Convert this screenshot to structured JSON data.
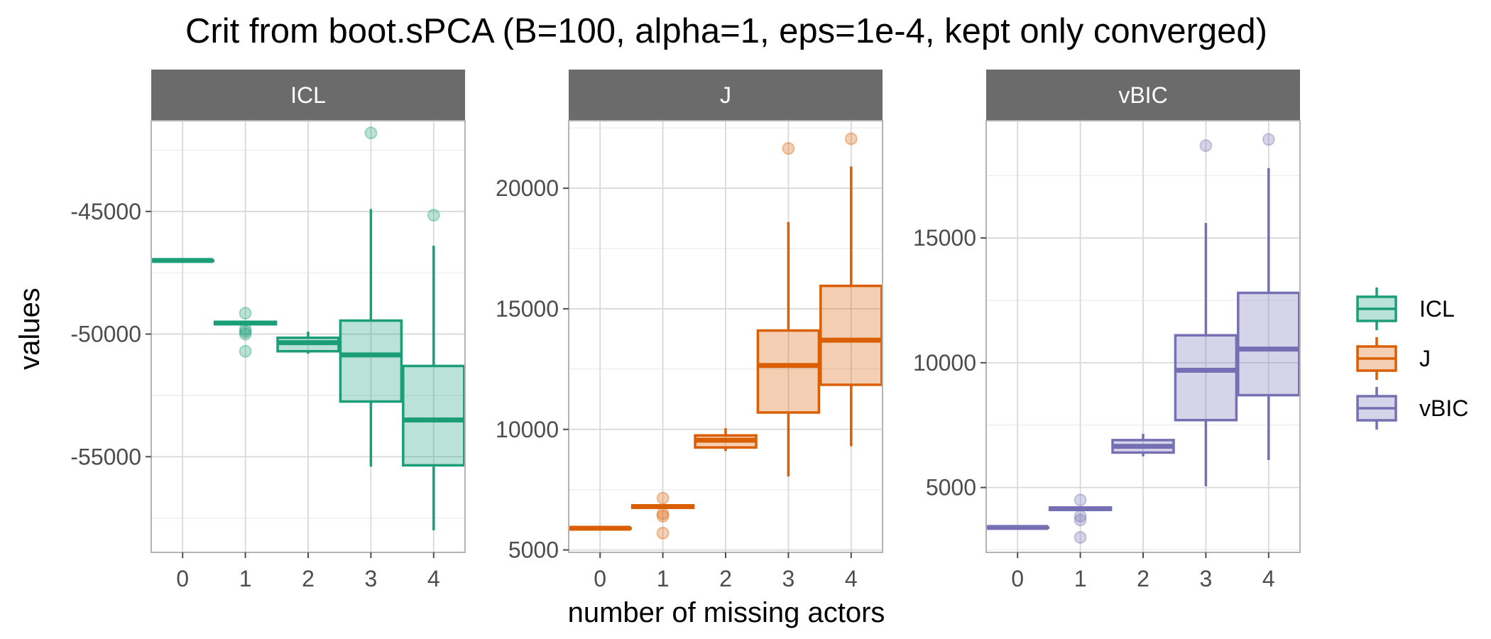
{
  "chart_data": {
    "type": "boxplot",
    "title": "Crit from boot.sPCA (B=100, alpha=1, eps=1e-4, kept only converged)",
    "xlabel": "number of missing actors",
    "ylabel": "values",
    "categories": [
      "0",
      "1",
      "2",
      "3",
      "4"
    ],
    "colors": {
      "ICL": "#1b9e77",
      "J": "#d95f02",
      "vBIC": "#7570b3"
    },
    "legend": {
      "position": "right",
      "entries": [
        "ICL",
        "J",
        "vBIC"
      ]
    },
    "grid": true,
    "facets": [
      {
        "name": "ICL",
        "ylim": [
          -58900,
          -41300
        ],
        "yticks": [
          -55000,
          -50000,
          -45000
        ],
        "boxes": [
          {
            "x": "0",
            "lower_whisker": -47000,
            "q1": -47000,
            "median": -47000,
            "q3": -47000,
            "upper_whisker": -47000,
            "outliers": []
          },
          {
            "x": "1",
            "lower_whisker": -49600,
            "q1": -49600,
            "median": -49550,
            "q3": -49500,
            "upper_whisker": -49450,
            "outliers": [
              -49150,
              -49800,
              -49900,
              -50000,
              -50700
            ]
          },
          {
            "x": "2",
            "lower_whisker": -50800,
            "q1": -50700,
            "median": -50350,
            "q3": -50150,
            "upper_whisker": -49900,
            "outliers": []
          },
          {
            "x": "3",
            "lower_whisker": -55400,
            "q1": -52750,
            "median": -50850,
            "q3": -49450,
            "upper_whisker": -44900,
            "outliers": [
              -41800
            ]
          },
          {
            "x": "4",
            "lower_whisker": -58000,
            "q1": -55350,
            "median": -53500,
            "q3": -51300,
            "upper_whisker": -46400,
            "outliers": [
              -45150
            ]
          }
        ]
      },
      {
        "name": "J",
        "ylim": [
          4900,
          22800
        ],
        "yticks": [
          5000,
          10000,
          15000,
          20000
        ],
        "boxes": [
          {
            "x": "0",
            "lower_whisker": 5900,
            "q1": 5900,
            "median": 5900,
            "q3": 5900,
            "upper_whisker": 5900,
            "outliers": []
          },
          {
            "x": "1",
            "lower_whisker": 6750,
            "q1": 6750,
            "median": 6800,
            "q3": 6850,
            "upper_whisker": 6850,
            "outliers": [
              7150,
              6500,
              6400,
              5700
            ]
          },
          {
            "x": "2",
            "lower_whisker": 9100,
            "q1": 9250,
            "median": 9550,
            "q3": 9750,
            "upper_whisker": 10050,
            "outliers": []
          },
          {
            "x": "3",
            "lower_whisker": 8050,
            "q1": 10700,
            "median": 12650,
            "q3": 14100,
            "upper_whisker": 18600,
            "outliers": [
              21650
            ]
          },
          {
            "x": "4",
            "lower_whisker": 9300,
            "q1": 11850,
            "median": 13700,
            "q3": 15950,
            "upper_whisker": 20900,
            "outliers": [
              22050
            ]
          }
        ]
      },
      {
        "name": "vBIC",
        "ylim": [
          2400,
          19700
        ],
        "yticks": [
          5000,
          10000,
          15000
        ],
        "boxes": [
          {
            "x": "0",
            "lower_whisker": 3400,
            "q1": 3400,
            "median": 3400,
            "q3": 3400,
            "upper_whisker": 3400,
            "outliers": []
          },
          {
            "x": "1",
            "lower_whisker": 4100,
            "q1": 4100,
            "median": 4150,
            "q3": 4200,
            "upper_whisker": 4200,
            "outliers": [
              4500,
              3850,
              3700,
              3000
            ]
          },
          {
            "x": "2",
            "lower_whisker": 6250,
            "q1": 6400,
            "median": 6650,
            "q3": 6900,
            "upper_whisker": 7150,
            "outliers": []
          },
          {
            "x": "3",
            "lower_whisker": 5050,
            "q1": 7700,
            "median": 9700,
            "q3": 11100,
            "upper_whisker": 15600,
            "outliers": [
              18700
            ]
          },
          {
            "x": "4",
            "lower_whisker": 6100,
            "q1": 8700,
            "median": 10550,
            "q3": 12800,
            "upper_whisker": 17800,
            "outliers": [
              18950
            ]
          }
        ]
      }
    ]
  }
}
